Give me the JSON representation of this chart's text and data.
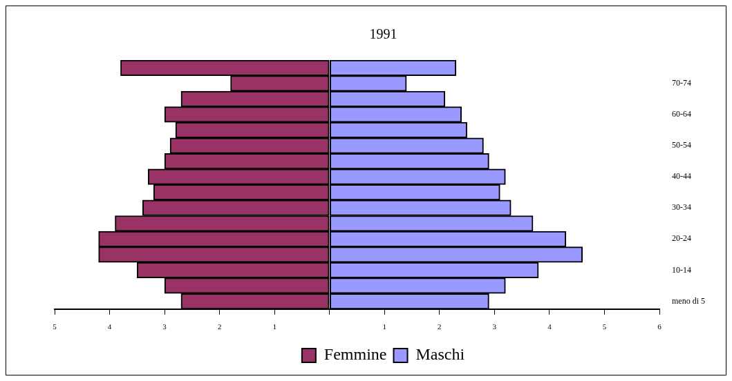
{
  "chart_data": {
    "type": "bar",
    "title": "1991",
    "orientation": "horizontal",
    "stacked": true,
    "legend": "bottom",
    "categories": [
      null,
      "70-74",
      null,
      "60-64",
      null,
      "50-54",
      null,
      "40-44",
      null,
      "30-34",
      null,
      "20-24",
      null,
      "10-14",
      null,
      "meno di 5"
    ],
    "series": [
      {
        "name": "Femmine",
        "color": "#993366",
        "values": [
          -3.8,
          -1.8,
          -2.7,
          -3.0,
          -2.8,
          -2.9,
          -3.0,
          -3.3,
          -3.2,
          -3.4,
          -3.9,
          -4.2,
          -4.2,
          -3.5,
          -3.0,
          -2.7
        ]
      },
      {
        "name": "Maschi",
        "color": "#9999ff",
        "values": [
          2.3,
          1.4,
          2.1,
          2.4,
          2.5,
          2.8,
          2.9,
          3.2,
          3.1,
          3.3,
          3.7,
          4.3,
          4.6,
          3.8,
          3.2,
          2.9
        ]
      }
    ],
    "xlim": [
      -5,
      6
    ],
    "xticks": [
      {
        "value": -5,
        "label": "5"
      },
      {
        "value": -4,
        "label": "4"
      },
      {
        "value": -3,
        "label": "3"
      },
      {
        "value": -2,
        "label": "2"
      },
      {
        "value": -1,
        "label": "1"
      },
      {
        "value": 0,
        "label": null
      },
      1,
      2,
      3,
      4,
      5,
      6
    ]
  }
}
